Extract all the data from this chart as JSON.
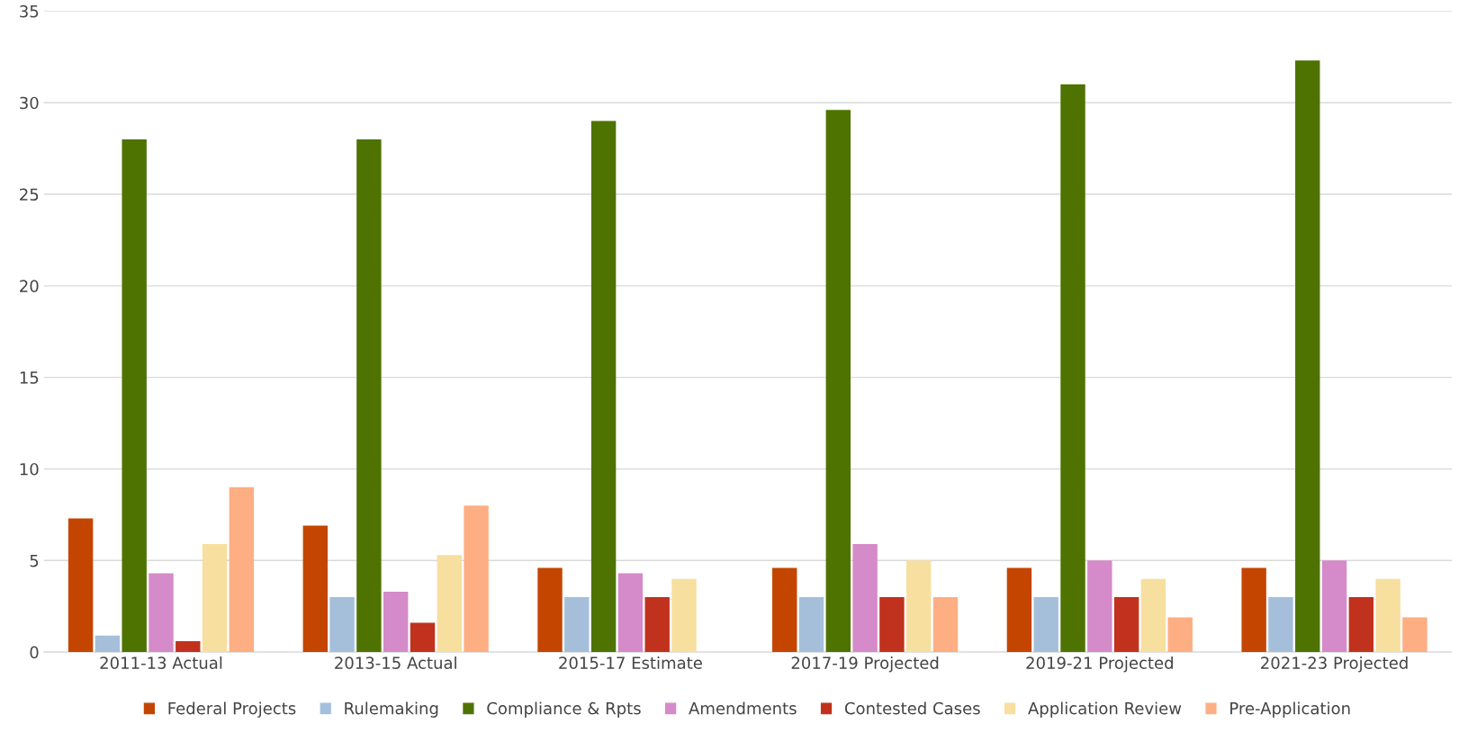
{
  "chart_data": {
    "type": "bar",
    "categories": [
      "2011-13 Actual",
      "2013-15 Actual",
      "2015-17 Estimate",
      "2017-19 Projected",
      "2019-21 Projected",
      "2021-23 Projected"
    ],
    "series": [
      {
        "name": "Federal Projects",
        "color": "#c44500",
        "values": [
          7.3,
          6.9,
          4.6,
          4.6,
          4.6,
          4.6
        ]
      },
      {
        "name": "Rulemaking",
        "color": "#a5bfdb",
        "values": [
          0.9,
          3.0,
          3.0,
          3.0,
          3.0,
          3.0
        ]
      },
      {
        "name": "Compliance & Rpts",
        "color": "#4e7300",
        "values": [
          28.0,
          28.0,
          29.0,
          29.6,
          31.0,
          32.3
        ]
      },
      {
        "name": "Amendments",
        "color": "#d58ac9",
        "values": [
          4.3,
          3.3,
          4.3,
          5.9,
          5.0,
          5.0
        ]
      },
      {
        "name": "Contested Cases",
        "color": "#c0321e",
        "values": [
          0.6,
          1.6,
          3.0,
          3.0,
          3.0,
          3.0
        ]
      },
      {
        "name": "Application Review",
        "color": "#f7dfa0",
        "values": [
          5.9,
          5.3,
          4.0,
          5.0,
          4.0,
          4.0
        ]
      },
      {
        "name": "Pre-Application",
        "color": "#fdae83",
        "values": [
          9.0,
          8.0,
          null,
          3.0,
          1.9,
          1.9
        ]
      }
    ],
    "ylim": [
      0,
      35
    ],
    "yticks": [
      0,
      5,
      10,
      15,
      20,
      25,
      30,
      35
    ],
    "grid": "y",
    "legend": "bottom"
  }
}
